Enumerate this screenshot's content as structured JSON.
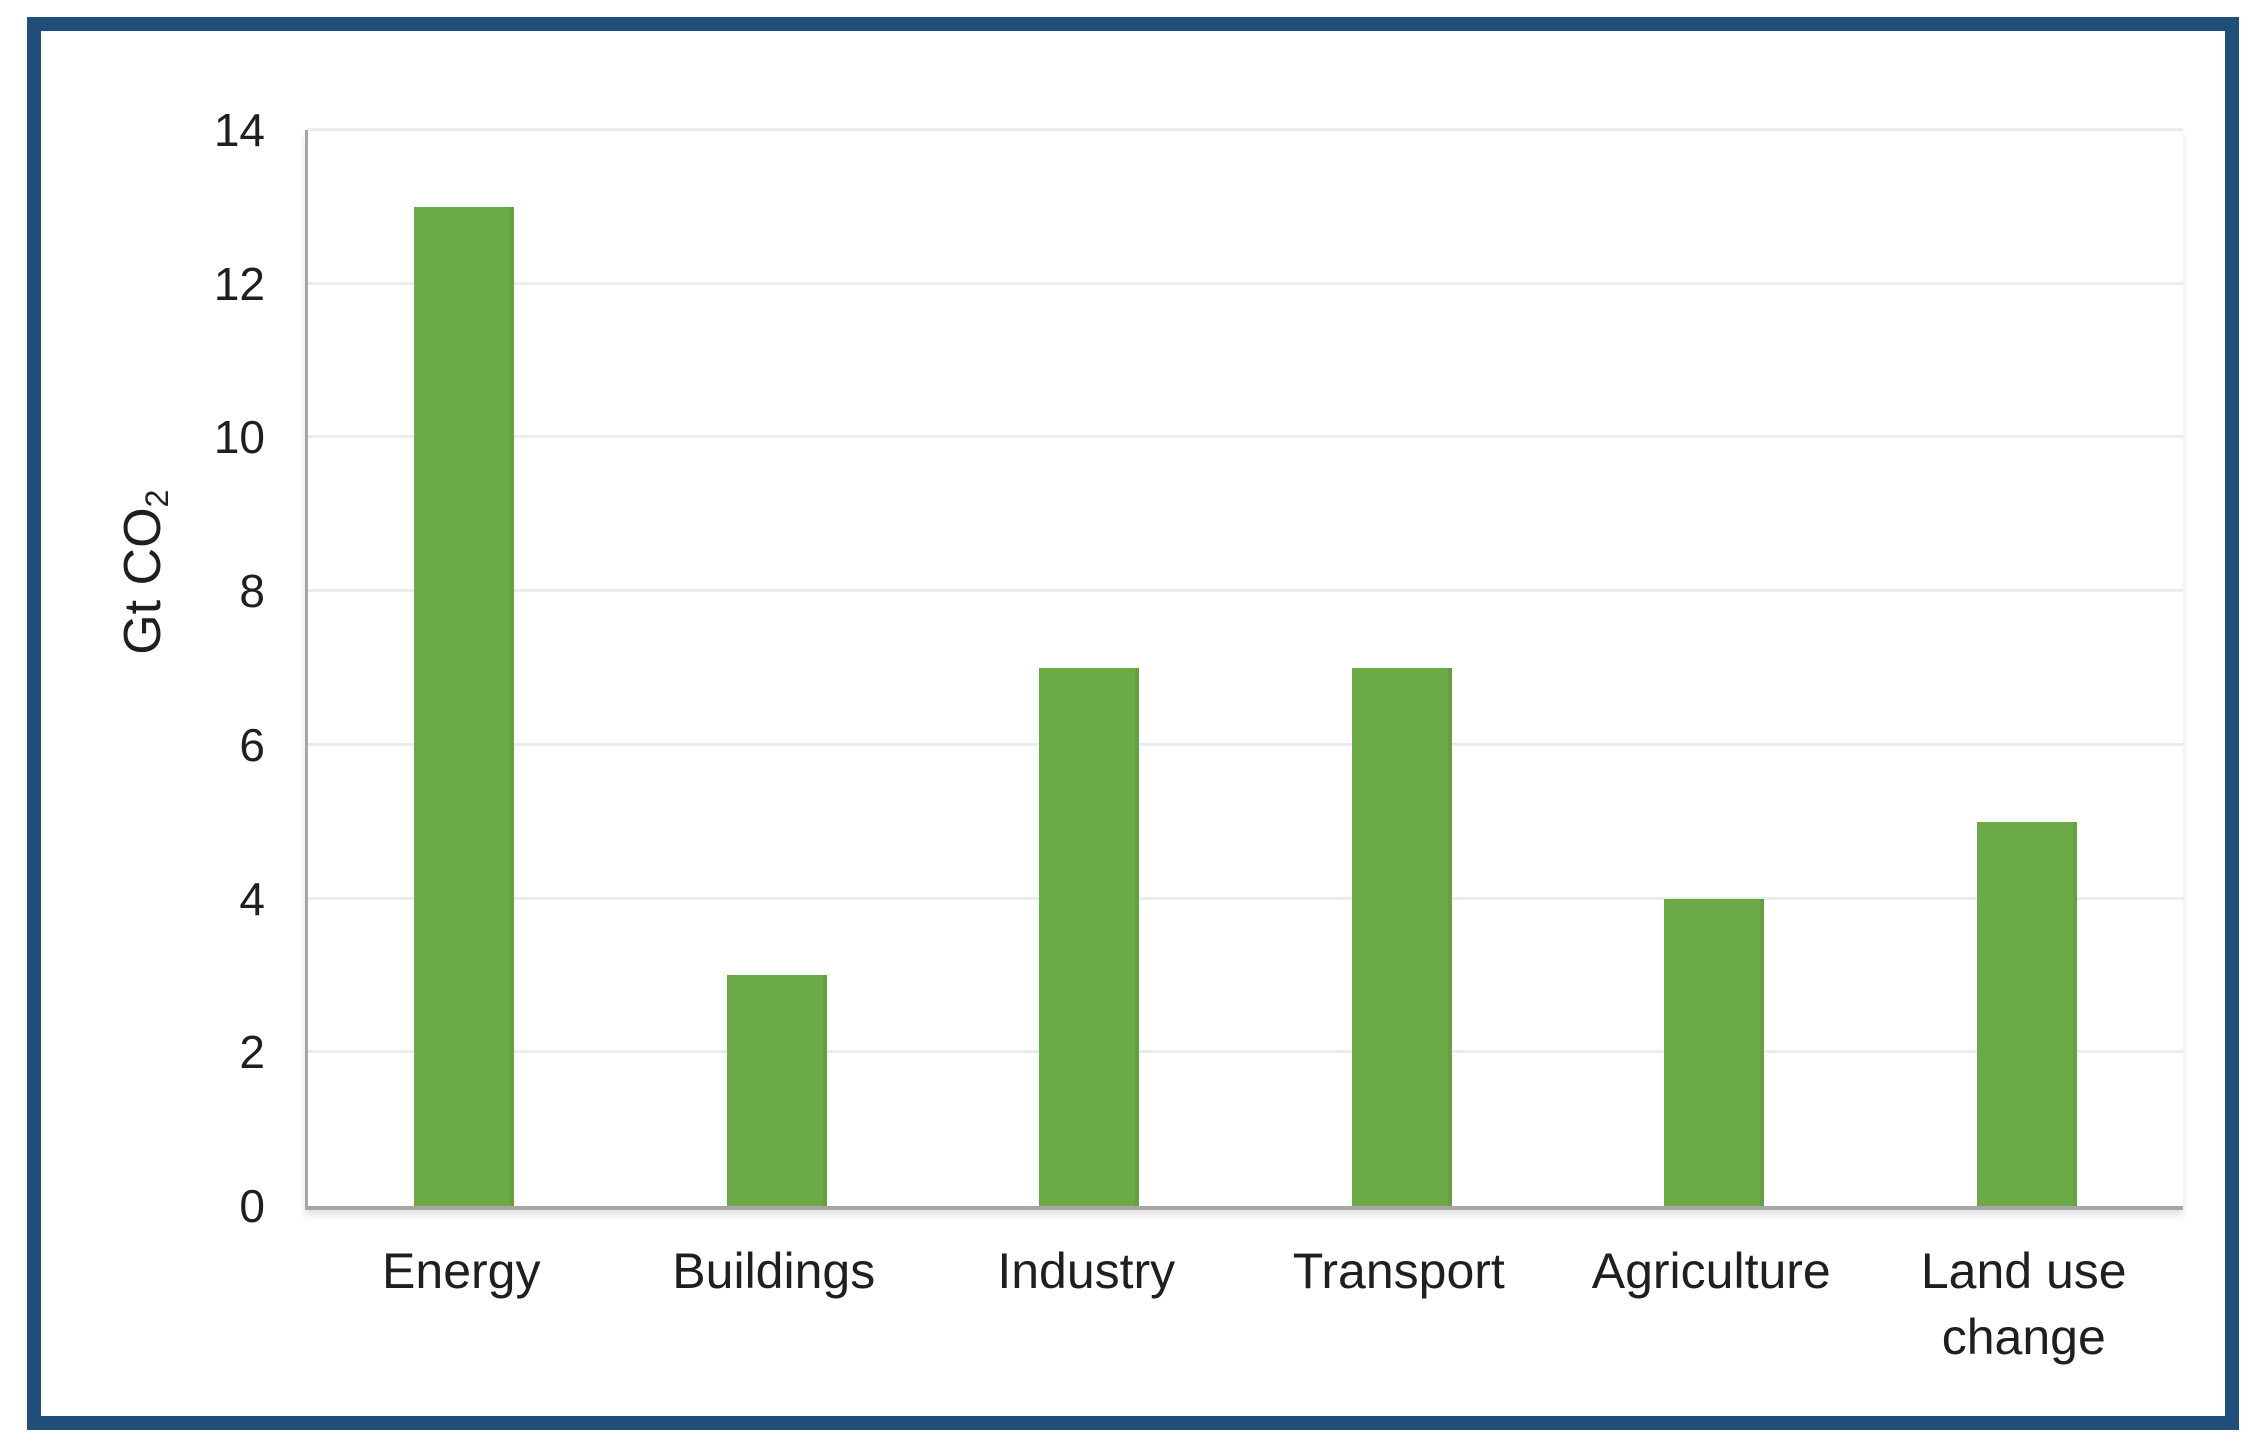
{
  "page": {
    "background": "#ffffff"
  },
  "frame": {
    "color": "#1f4e79"
  },
  "chart_data": {
    "type": "bar",
    "title": "",
    "categories": [
      "Energy",
      "Buildings",
      "Industry",
      "Transport",
      "Agriculture",
      "Land use change"
    ],
    "values": [
      13,
      3,
      7,
      7,
      4,
      5
    ],
    "xlabel": "",
    "ylabel": "Gt CO₂",
    "ylabel_main": "Gt CO",
    "ylabel_sub": "2",
    "ylim": [
      0,
      14
    ],
    "yticks": [
      0,
      2,
      4,
      6,
      8,
      10,
      12,
      14
    ],
    "grid": true,
    "legend": false,
    "bar_color": "#6caa47",
    "gridline_color": "#ececec",
    "axis_line_color": "#a6a6a6",
    "text_color": "#1f1f1f"
  }
}
